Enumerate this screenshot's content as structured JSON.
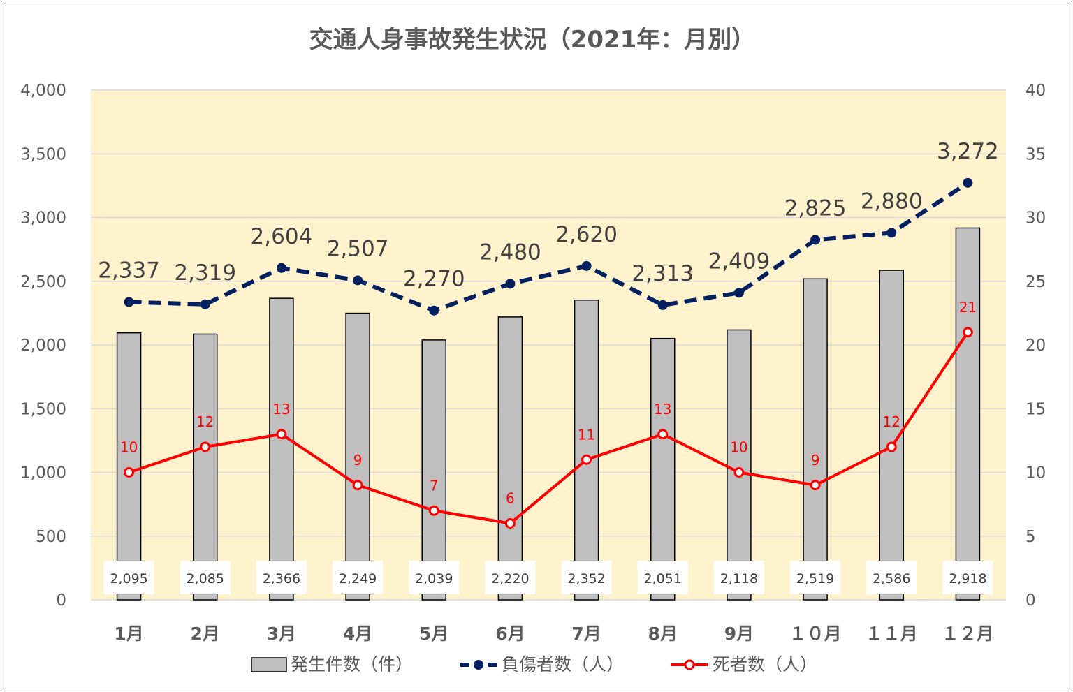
{
  "chart_data": {
    "type": "bar+line",
    "title": "交通人身事故発生状況（2021年：月別）",
    "categories": [
      "1月",
      "2月",
      "3月",
      "4月",
      "5月",
      "6月",
      "7月",
      "8月",
      "9月",
      "１０月",
      "１１月",
      "１２月"
    ],
    "series": [
      {
        "name": "発生件数（件）",
        "type": "bar",
        "axis": "left",
        "color": "#bfbfbf",
        "values": [
          2095,
          2085,
          2366,
          2249,
          2039,
          2220,
          2352,
          2051,
          2118,
          2519,
          2586,
          2918
        ],
        "labels": [
          "2,095",
          "2,085",
          "2,366",
          "2,249",
          "2,039",
          "2,220",
          "2,352",
          "2,051",
          "2,118",
          "2,519",
          "2,586",
          "2,918"
        ]
      },
      {
        "name": "負傷者数（人）",
        "type": "line",
        "style": "dashed",
        "axis": "left",
        "color": "#002060",
        "values": [
          2337,
          2319,
          2604,
          2507,
          2270,
          2480,
          2620,
          2313,
          2409,
          2825,
          2880,
          3272
        ],
        "labels": [
          "2,337",
          "2,319",
          "2,604",
          "2,507",
          "2,270",
          "2,480",
          "2,620",
          "2,313",
          "2,409",
          "2,825",
          "2,880",
          "3,272"
        ]
      },
      {
        "name": "死者数（人）",
        "type": "line",
        "style": "solid",
        "axis": "right",
        "color": "#ff0000",
        "values": [
          10,
          12,
          13,
          9,
          7,
          6,
          11,
          13,
          10,
          9,
          12,
          21
        ],
        "labels": [
          "10",
          "12",
          "13",
          "9",
          "7",
          "6",
          "11",
          "13",
          "10",
          "9",
          "12",
          "21"
        ]
      }
    ],
    "y_left": {
      "range": [
        0,
        4000
      ],
      "ticks": [
        0,
        500,
        1000,
        1500,
        2000,
        2500,
        3000,
        3500,
        4000
      ],
      "tick_labels": [
        "0",
        "500",
        "1,000",
        "1,500",
        "2,000",
        "2,500",
        "3,000",
        "3,500",
        "4,000"
      ]
    },
    "y_right": {
      "range": [
        0,
        40
      ],
      "ticks": [
        0,
        5,
        10,
        15,
        20,
        25,
        30,
        35,
        40
      ],
      "tick_labels": [
        "0",
        "5",
        "10",
        "15",
        "20",
        "25",
        "30",
        "35",
        "40"
      ]
    },
    "grid": true,
    "plot_background": "#fff2cc",
    "legend_position": "bottom"
  }
}
